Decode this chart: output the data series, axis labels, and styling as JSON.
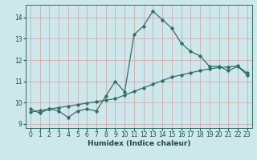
{
  "xlabel": "Humidex (Indice chaleur)",
  "ylabel": "",
  "bg_color": "#cde8ea",
  "grid_color": "#aacdd0",
  "line_color": "#2e6e6a",
  "xlim": [
    -0.5,
    23.5
  ],
  "ylim": [
    8.8,
    14.6
  ],
  "yticks": [
    9,
    10,
    11,
    12,
    13,
    14
  ],
  "xticks": [
    0,
    1,
    2,
    3,
    4,
    5,
    6,
    7,
    8,
    9,
    10,
    11,
    12,
    13,
    14,
    15,
    16,
    17,
    18,
    19,
    20,
    21,
    22,
    23
  ],
  "hours": [
    0,
    1,
    2,
    3,
    4,
    5,
    6,
    7,
    8,
    9,
    10,
    11,
    12,
    13,
    14,
    15,
    16,
    17,
    18,
    19,
    20,
    21,
    22,
    23
  ],
  "curve1": [
    9.7,
    9.5,
    9.7,
    9.6,
    9.3,
    9.6,
    9.7,
    9.6,
    10.3,
    11.0,
    10.5,
    13.2,
    13.6,
    14.3,
    13.9,
    13.5,
    12.8,
    12.4,
    12.2,
    11.7,
    11.7,
    11.5,
    11.7,
    11.3
  ],
  "curve2": [
    9.55,
    9.62,
    9.69,
    9.76,
    9.83,
    9.9,
    9.97,
    10.04,
    10.11,
    10.18,
    10.35,
    10.52,
    10.69,
    10.86,
    11.03,
    11.2,
    11.3,
    11.4,
    11.5,
    11.58,
    11.65,
    11.68,
    11.72,
    11.38
  ]
}
